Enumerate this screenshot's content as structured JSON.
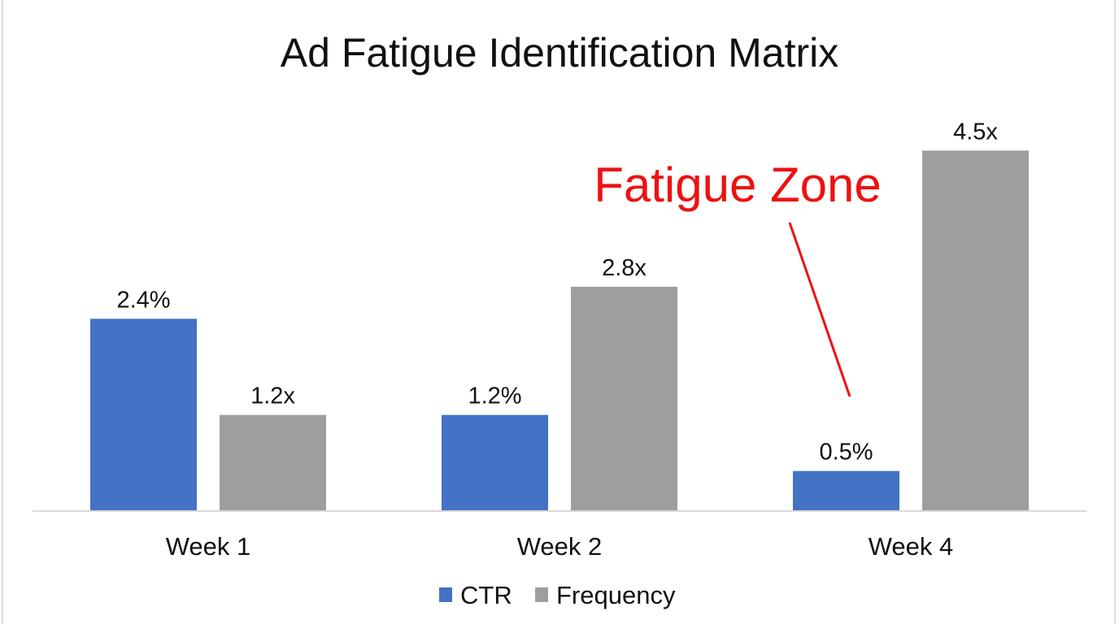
{
  "chart_data": {
    "type": "bar",
    "title": "Ad Fatigue Identification Matrix",
    "categories": [
      "Week 1",
      "Week 2",
      "Week 4"
    ],
    "series": [
      {
        "name": "CTR",
        "values": [
          2.4,
          1.2,
          0.5
        ],
        "labels": [
          "2.4%",
          "1.2%",
          "0.5%"
        ],
        "color": "#4472C4"
      },
      {
        "name": "Frequency",
        "values": [
          1.2,
          2.8,
          4.5
        ],
        "labels": [
          "1.2x",
          "2.8x",
          "4.5x"
        ],
        "color": "#9E9E9E"
      }
    ],
    "ylim": [
      0,
      4.5
    ],
    "grid": false,
    "legend_position": "bottom",
    "annotation": {
      "text": "Fatigue Zone",
      "color": "#EE1111",
      "points_to": "Week 4 CTR"
    }
  }
}
